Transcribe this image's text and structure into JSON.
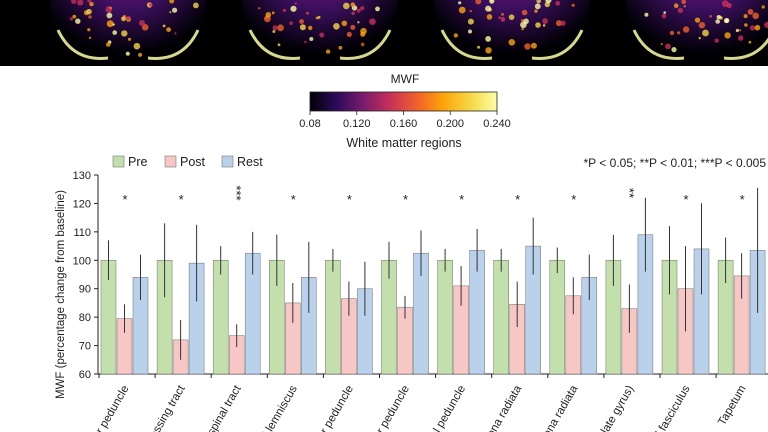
{
  "colorbar": {
    "title": "MWF",
    "ticks": [
      "0.08",
      "0.120",
      "0.160",
      "0.200",
      "0.240"
    ],
    "caption": "White matter regions",
    "colors": [
      "#000004",
      "#2c0b5c",
      "#7a1c6c",
      "#c8305a",
      "#f1602c",
      "#fca50a",
      "#f6d746",
      "#fcffa4"
    ]
  },
  "chart_data": {
    "type": "bar",
    "ylabel": "MWF (percentage change from baseline)",
    "ylim": [
      60,
      130
    ],
    "yticks": [
      60,
      70,
      80,
      90,
      100,
      110,
      120,
      130
    ],
    "legend": [
      "Pre",
      "Post",
      "Rest"
    ],
    "colors": {
      "Pre": "#c3e0ac",
      "Post": "#f6c7c4",
      "Rest": "#b9d1ea"
    },
    "note": "*P < 0.05; **P < 0.01; ***P < 0.005",
    "categories": [
      "llar peduncle",
      "crossing tract",
      "ospinal tract",
      "al lemniscus",
      "llar peduncle",
      "tter peduncle",
      "ral peduncle",
      "orona radiata",
      "orona radiata",
      "ngulate gyrus)",
      "al fasciculus",
      "Tapetum"
    ],
    "significance": [
      "*",
      "*",
      "***",
      "*",
      "*",
      "*",
      "*",
      "*",
      "*",
      "**",
      "*",
      "*"
    ],
    "series": [
      {
        "name": "Pre",
        "values": [
          100,
          100,
          100,
          100,
          100,
          100,
          100,
          100,
          100,
          100,
          100,
          100
        ],
        "err": [
          7,
          13,
          5,
          9,
          4,
          6.5,
          4,
          4,
          4.5,
          9,
          12,
          8
        ]
      },
      {
        "name": "Post",
        "values": [
          79.5,
          72,
          73.5,
          85,
          86.5,
          83.5,
          91,
          84.5,
          87.5,
          83,
          90,
          94.5
        ],
        "err": [
          5,
          7,
          4,
          7,
          6,
          4,
          7,
          8,
          6.5,
          8.5,
          15,
          8
        ]
      },
      {
        "name": "Rest",
        "values": [
          94,
          99,
          102.5,
          94,
          90,
          102.5,
          103.5,
          105,
          94,
          109,
          104,
          103.5
        ],
        "err": [
          8,
          13.5,
          7.5,
          12.5,
          9.5,
          8,
          7.5,
          10,
          8,
          13,
          16,
          22
        ]
      }
    ]
  }
}
